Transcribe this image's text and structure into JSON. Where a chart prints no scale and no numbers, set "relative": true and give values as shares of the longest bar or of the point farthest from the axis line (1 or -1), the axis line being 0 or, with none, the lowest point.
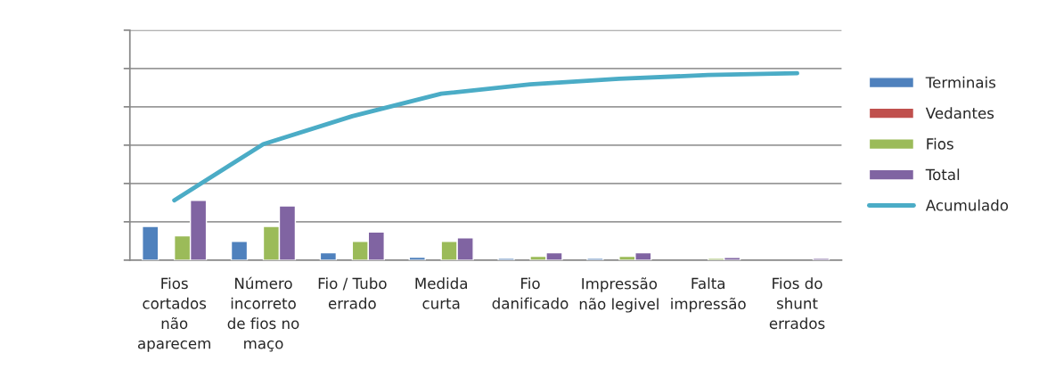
{
  "chart_data": {
    "type": "bar",
    "relative": true,
    "grid": "y",
    "legend": "right",
    "categories": [
      "Fios\ncortados\nnão\naparecem",
      "Número\nincorreto\nde fios no\nmaço",
      "Fio / Tubo\nerrado",
      "Medida\ncurta",
      "Fio\ndanificado",
      "Impressão\nnão legivel",
      "Falta\nimpressão",
      "Fios do\nshunt\nerrados"
    ],
    "series": [
      {
        "name": "Terminais",
        "color": "#4f81bd",
        "values": [
          0.18,
          0.1,
          0.04,
          0.016,
          0.01,
          0.01,
          null,
          null
        ]
      },
      {
        "name": "Vedantes",
        "color": "#c0504d",
        "values": [
          null,
          null,
          null,
          null,
          null,
          null,
          null,
          null
        ]
      },
      {
        "name": "Fios",
        "color": "#9bbb59",
        "values": [
          0.13,
          0.18,
          0.1,
          0.1,
          0.02,
          0.02,
          0.01,
          null
        ]
      },
      {
        "name": "Total",
        "color": "#8064a2",
        "values": [
          0.32,
          0.29,
          0.15,
          0.12,
          0.04,
          0.04,
          0.015,
          0.01
        ]
      },
      {
        "name": "Acumulado",
        "type": "line",
        "color": "#4bacc6",
        "values": [
          0.32,
          0.62,
          0.77,
          0.89,
          0.94,
          0.97,
          0.99,
          1.0
        ]
      }
    ]
  }
}
